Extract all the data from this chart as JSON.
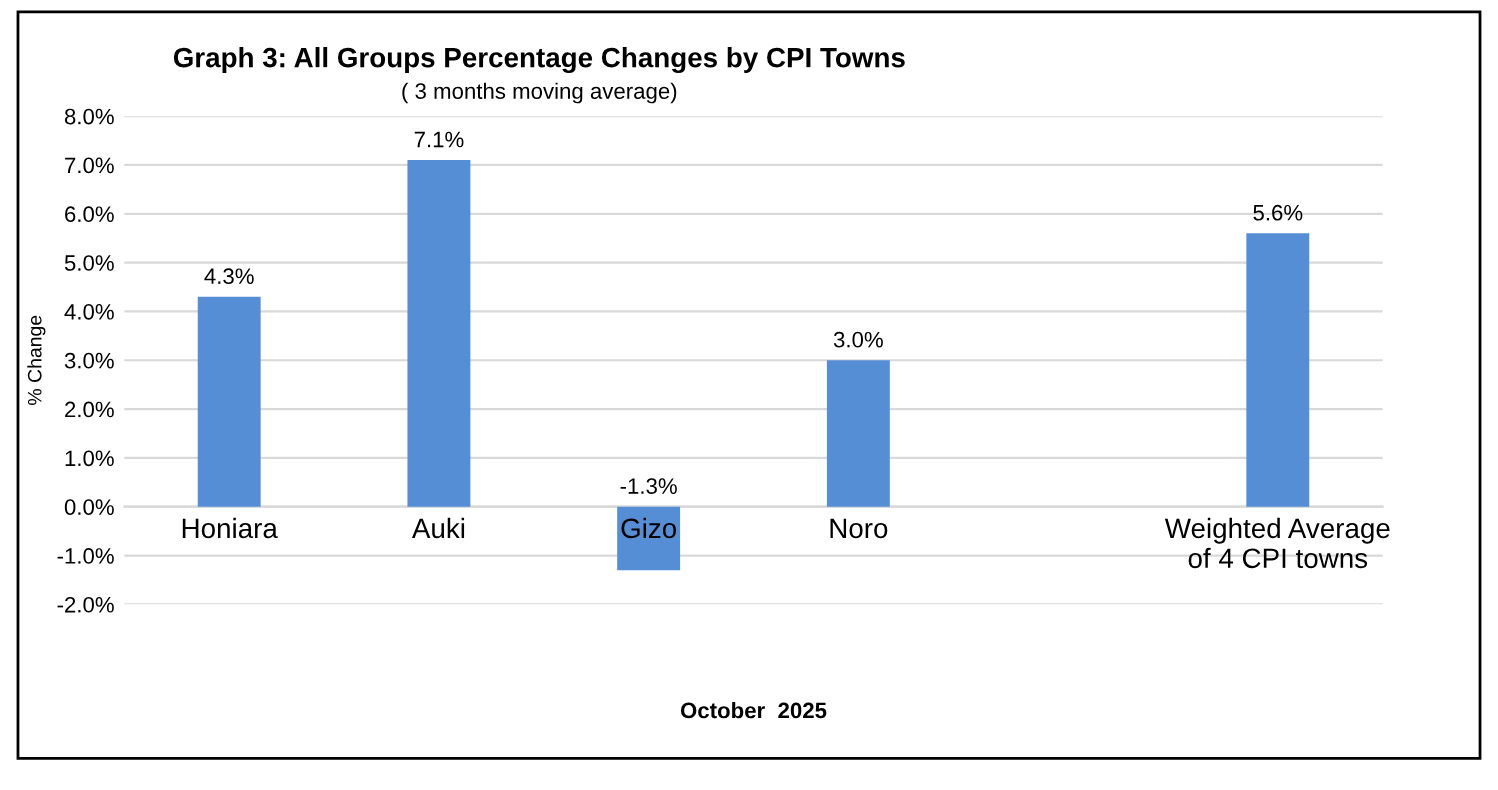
{
  "chart_data": {
    "type": "bar",
    "title": "Graph 3: All Groups Percentage Changes by CPI Towns",
    "subtitle": "( 3 months moving average)",
    "ylabel": "% Change",
    "xlabel": "October  2025",
    "categories": [
      "Honiara",
      "Auki",
      "Gizo",
      "Noro",
      null,
      "Weighted Average\nof 4 CPI towns"
    ],
    "values": [
      4.3,
      7.1,
      -1.3,
      3.0,
      null,
      5.6
    ],
    "value_labels": [
      "4.3%",
      "7.1%",
      "-1.3%",
      "3.0%",
      null,
      "5.6%"
    ],
    "color": "#558ed5",
    "ylim": [
      -2,
      8
    ],
    "yticks": [
      {
        "value": -2,
        "label": "-2.0%"
      },
      {
        "value": -1,
        "label": "-1.0%"
      },
      {
        "value": 0,
        "label": "0.0%"
      },
      {
        "value": 1,
        "label": "1.0%"
      },
      {
        "value": 2,
        "label": "2.0%"
      },
      {
        "value": 3,
        "label": "3.0%"
      },
      {
        "value": 4,
        "label": "4.0%"
      },
      {
        "value": 5,
        "label": "5.0%"
      },
      {
        "value": 6,
        "label": "6.0%"
      },
      {
        "value": 7,
        "label": "7.0%"
      },
      {
        "value": 8,
        "label": "8.0%"
      }
    ],
    "grid": "y",
    "legend": false
  }
}
